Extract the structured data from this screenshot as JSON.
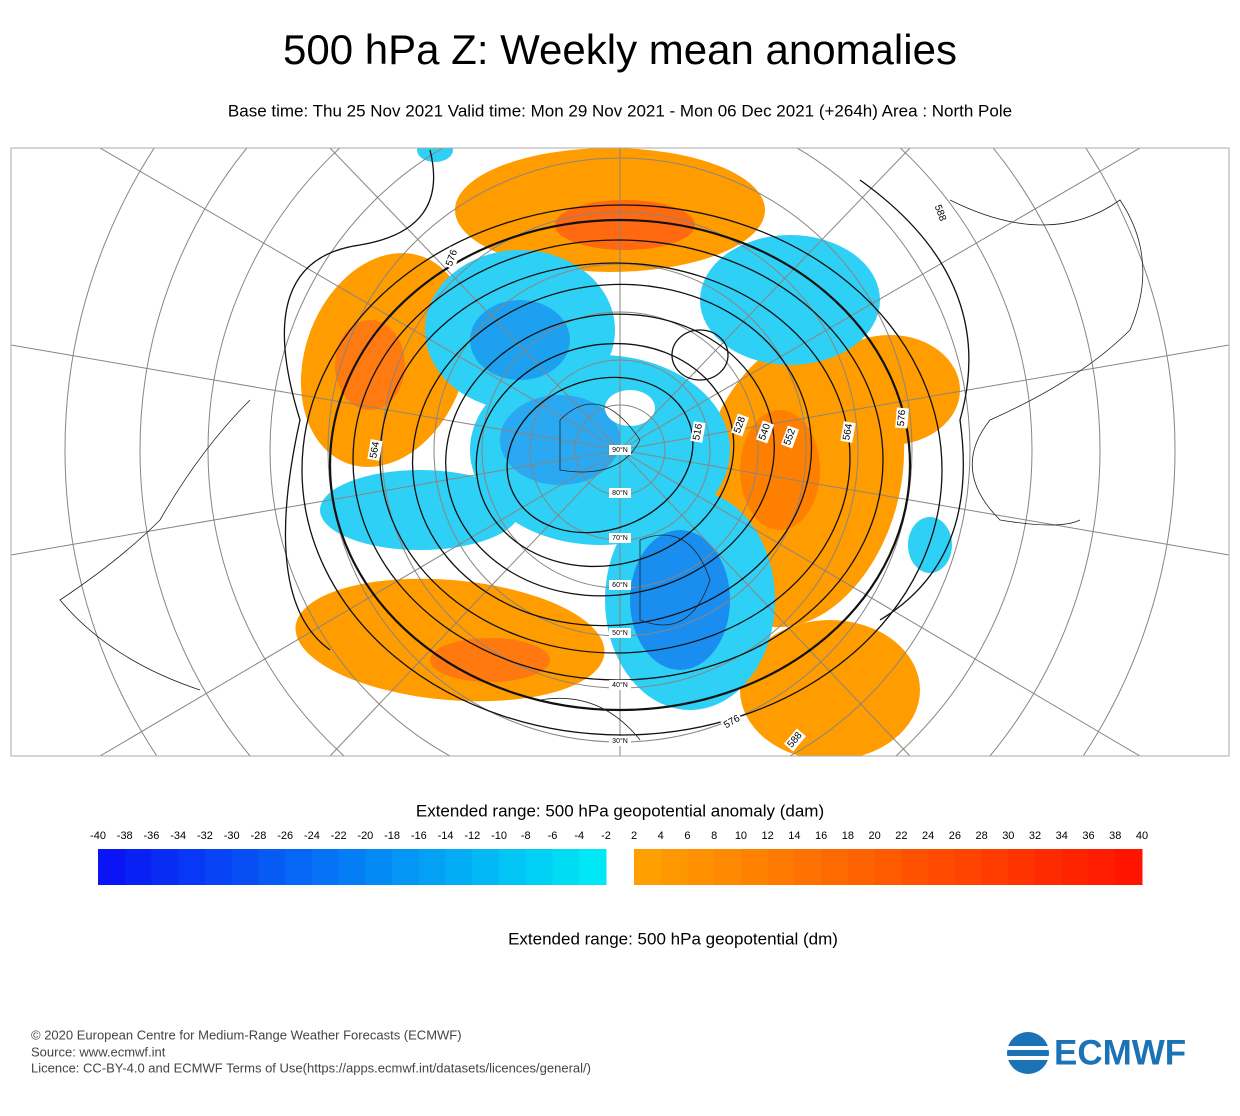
{
  "header": {
    "title": "500 hPa Z: Weekly mean anomalies",
    "subtitle": "Base time: Thu 25 Nov 2021 Valid time: Mon 29 Nov 2021 - Mon 06 Dec 2021 (+264h) Area : North Pole"
  },
  "map": {
    "latitude_labels": [
      "90°N",
      "80°N",
      "70°N",
      "60°N",
      "50°N",
      "40°N",
      "30°N"
    ],
    "contour_labels": [
      576,
      564,
      528,
      540,
      552,
      564,
      576,
      588,
      576,
      516,
      588
    ]
  },
  "legend": {
    "title": "Extended range: 500 hPa geopotential anomaly (dam)",
    "negative_ticks": [
      -40,
      -38,
      -36,
      -34,
      -32,
      -30,
      -28,
      -26,
      -24,
      -22,
      -20,
      -18,
      -16,
      -14,
      -12,
      -10,
      -8,
      -6,
      -4,
      -2
    ],
    "positive_ticks": [
      2,
      4,
      6,
      8,
      10,
      12,
      14,
      16,
      18,
      20,
      22,
      24,
      26,
      28,
      30,
      32,
      34,
      36,
      38,
      40
    ],
    "negative_colors": [
      "#0a14f5",
      "#00e8f5"
    ],
    "positive_colors": [
      "#ffa000",
      "#ff1400"
    ],
    "contour_title": "Extended range: 500 hPa geopotential (dm)"
  },
  "footer": {
    "lines": [
      "© 2020 European Centre for Medium-Range Weather Forecasts (ECMWF)",
      "Source: www.ecmwf.int",
      "Licence: CC-BY-4.0 and ECMWF Terms of Use(https://apps.ecmwf.int/datasets/licences/general/)"
    ],
    "logo": "ECMWF"
  }
}
